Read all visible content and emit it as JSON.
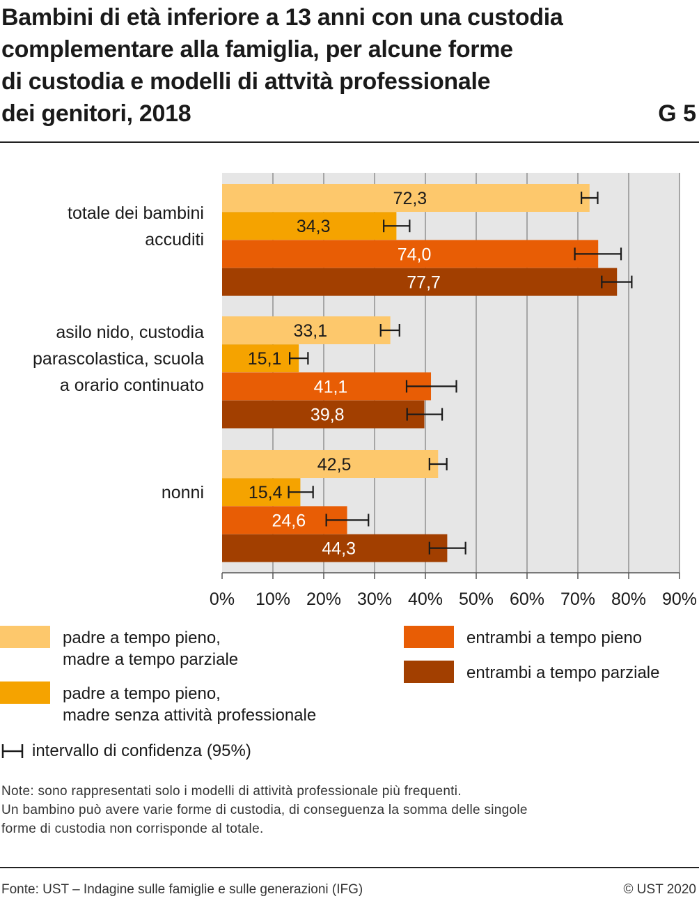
{
  "header": {
    "title_lines": [
      "Bambini di età inferiore a 13 anni con una custodia",
      "complementare alla famiglia, per alcune forme",
      "di custodia e modelli di attvità professionale",
      "dei genitori, 2018"
    ],
    "code": "G 5"
  },
  "chart_data": {
    "type": "bar",
    "orientation": "horizontal",
    "categories": [
      [
        "totale dei bambini",
        "accuditi"
      ],
      [
        "asilo nido, custodia",
        "parascolastica, scuola",
        "a orario continuato"
      ],
      [
        "nonni"
      ]
    ],
    "series": [
      {
        "name": "padre a tempo pieno, madre a tempo parziale",
        "color": "#fdc86c",
        "label_color": "#1a1a1a",
        "values": [
          72.3,
          33.1,
          42.5
        ],
        "labels": [
          "72,3",
          "33,1",
          "42,5"
        ],
        "ci": [
          [
            70.7,
            73.9
          ],
          [
            31.2,
            34.9
          ],
          [
            40.8,
            44.2
          ]
        ]
      },
      {
        "name": "padre a tempo pieno, madre senza attività professionale",
        "color": "#f5a300",
        "label_color": "#1a1a1a",
        "values": [
          34.3,
          15.1,
          15.4
        ],
        "labels": [
          "34,3",
          "15,1",
          "15,4"
        ],
        "ci": [
          [
            31.8,
            36.9
          ],
          [
            13.3,
            16.9
          ],
          [
            13.1,
            17.9
          ]
        ]
      },
      {
        "name": "entrambi a tempo pieno",
        "color": "#e85d05",
        "label_color": "#ffffff",
        "values": [
          74.0,
          41.1,
          24.6
        ],
        "labels": [
          "74,0",
          "41,1",
          "24,6"
        ],
        "ci": [
          [
            69.4,
            78.5
          ],
          [
            36.3,
            46.1
          ],
          [
            20.5,
            28.8
          ]
        ]
      },
      {
        "name": "entrambi a tempo parziale",
        "color": "#a23f00",
        "label_color": "#ffffff",
        "values": [
          77.7,
          39.8,
          44.3
        ],
        "labels": [
          "77,7",
          "39,8",
          "44,3"
        ],
        "ci": [
          [
            74.7,
            80.6
          ],
          [
            36.4,
            43.3
          ],
          [
            40.8,
            47.9
          ]
        ]
      }
    ],
    "xlim": [
      0,
      90
    ],
    "xticks": [
      0,
      10,
      20,
      30,
      40,
      50,
      60,
      70,
      80,
      90
    ],
    "xtick_labels": [
      "0%",
      "10%",
      "20%",
      "30%",
      "40%",
      "50%",
      "60%",
      "70%",
      "80%",
      "90%"
    ],
    "grid": true,
    "legend_position": "bottom"
  },
  "legend": {
    "items": [
      {
        "line1": "padre a tempo pieno,",
        "line2": "madre a tempo parziale",
        "color": "#fdc86c"
      },
      {
        "line1": "padre a tempo pieno,",
        "line2": "madre senza attività professionale",
        "color": "#f5a300"
      },
      {
        "line1": "entrambi a tempo pieno",
        "line2": "",
        "color": "#e85d05"
      },
      {
        "line1": "entrambi a tempo parziale",
        "line2": "",
        "color": "#a23f00"
      }
    ],
    "ci_label": "intervallo di confidenza (95%)"
  },
  "note": {
    "lines": [
      "Note: sono rappresentati solo i modelli di attività professionale più frequenti.",
      "Un bambino può avere varie forme di custodia, di conseguenza la somma delle singole",
      "forme di custodia non corrisponde al totale."
    ]
  },
  "footer": {
    "source": "Fonte: UST – Indagine sulle famiglie e sulle generazioni (IFG)",
    "copyright": "© UST 2020"
  }
}
